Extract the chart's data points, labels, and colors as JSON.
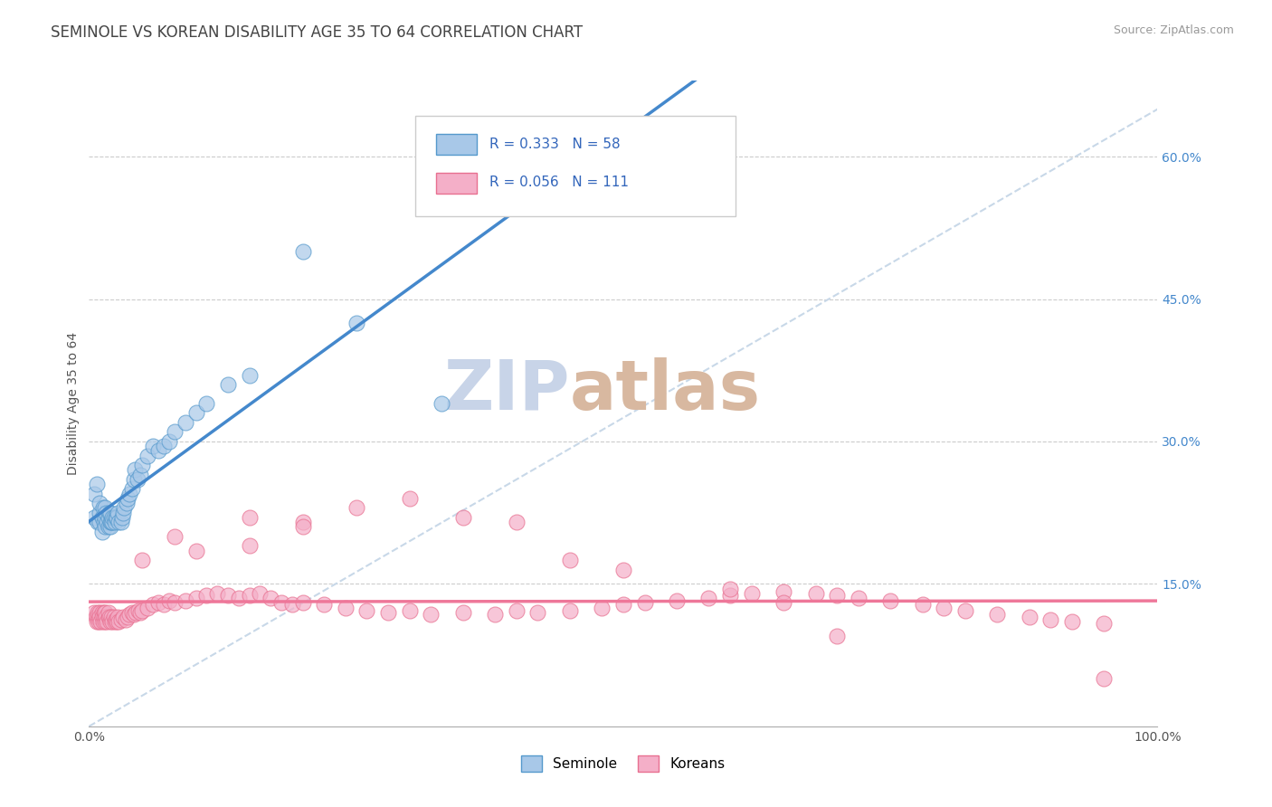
{
  "title": "SEMINOLE VS KOREAN DISABILITY AGE 35 TO 64 CORRELATION CHART",
  "source_text": "Source: ZipAtlas.com",
  "ylabel": "Disability Age 35 to 64",
  "xlim": [
    0.0,
    1.0
  ],
  "ylim": [
    0.0,
    0.68
  ],
  "xticks": [
    0.0,
    0.1,
    0.2,
    0.3,
    0.4,
    0.5,
    0.6,
    0.7,
    0.8,
    0.9,
    1.0
  ],
  "yticks": [
    0.15,
    0.3,
    0.45,
    0.6
  ],
  "yticklabels": [
    "15.0%",
    "30.0%",
    "45.0%",
    "60.0%"
  ],
  "seminole_color": "#a8c8e8",
  "korean_color": "#f4afc8",
  "seminole_edge": "#5599cc",
  "korean_edge": "#e87090",
  "seminole_line_color": "#4488cc",
  "korean_line_color": "#ee7799",
  "diag_line_color": "#c8d8e8",
  "r_seminole": 0.333,
  "n_seminole": 58,
  "r_korean": 0.056,
  "n_korean": 111,
  "legend_label_seminole": "Seminole",
  "legend_label_korean": "Koreans",
  "seminole_x": [
    0.005,
    0.005,
    0.007,
    0.008,
    0.01,
    0.01,
    0.01,
    0.012,
    0.012,
    0.013,
    0.014,
    0.015,
    0.015,
    0.015,
    0.016,
    0.017,
    0.018,
    0.018,
    0.019,
    0.02,
    0.02,
    0.02,
    0.021,
    0.022,
    0.022,
    0.023,
    0.024,
    0.025,
    0.026,
    0.027,
    0.028,
    0.03,
    0.031,
    0.032,
    0.033,
    0.035,
    0.036,
    0.038,
    0.04,
    0.042,
    0.043,
    0.045,
    0.048,
    0.05,
    0.055,
    0.06,
    0.065,
    0.07,
    0.075,
    0.08,
    0.09,
    0.1,
    0.11,
    0.13,
    0.15,
    0.2,
    0.25,
    0.33
  ],
  "seminole_y": [
    0.22,
    0.245,
    0.255,
    0.215,
    0.215,
    0.225,
    0.235,
    0.205,
    0.22,
    0.23,
    0.215,
    0.21,
    0.22,
    0.23,
    0.225,
    0.215,
    0.21,
    0.22,
    0.225,
    0.21,
    0.215,
    0.225,
    0.215,
    0.215,
    0.22,
    0.22,
    0.215,
    0.22,
    0.22,
    0.225,
    0.215,
    0.215,
    0.22,
    0.225,
    0.23,
    0.235,
    0.24,
    0.245,
    0.25,
    0.26,
    0.27,
    0.26,
    0.265,
    0.275,
    0.285,
    0.295,
    0.29,
    0.295,
    0.3,
    0.31,
    0.32,
    0.33,
    0.34,
    0.36,
    0.37,
    0.5,
    0.425,
    0.34
  ],
  "korean_x": [
    0.005,
    0.006,
    0.007,
    0.008,
    0.008,
    0.009,
    0.01,
    0.01,
    0.011,
    0.012,
    0.012,
    0.013,
    0.014,
    0.014,
    0.015,
    0.015,
    0.016,
    0.017,
    0.018,
    0.018,
    0.019,
    0.02,
    0.021,
    0.022,
    0.023,
    0.024,
    0.025,
    0.026,
    0.027,
    0.028,
    0.03,
    0.032,
    0.034,
    0.036,
    0.038,
    0.04,
    0.042,
    0.044,
    0.046,
    0.048,
    0.05,
    0.055,
    0.06,
    0.065,
    0.07,
    0.075,
    0.08,
    0.09,
    0.1,
    0.11,
    0.12,
    0.13,
    0.14,
    0.15,
    0.16,
    0.17,
    0.18,
    0.19,
    0.2,
    0.22,
    0.24,
    0.26,
    0.28,
    0.3,
    0.32,
    0.35,
    0.38,
    0.4,
    0.42,
    0.45,
    0.48,
    0.5,
    0.52,
    0.55,
    0.58,
    0.6,
    0.62,
    0.65,
    0.68,
    0.7,
    0.72,
    0.75,
    0.78,
    0.8,
    0.82,
    0.85,
    0.88,
    0.9,
    0.92,
    0.95,
    0.05,
    0.08,
    0.1,
    0.15,
    0.2,
    0.25,
    0.3,
    0.35,
    0.4,
    0.45,
    0.5,
    0.6,
    0.65,
    0.7,
    0.15,
    0.2,
    0.95
  ],
  "korean_y": [
    0.12,
    0.115,
    0.11,
    0.115,
    0.12,
    0.11,
    0.12,
    0.115,
    0.11,
    0.12,
    0.115,
    0.11,
    0.12,
    0.115,
    0.11,
    0.12,
    0.115,
    0.11,
    0.115,
    0.12,
    0.115,
    0.11,
    0.115,
    0.11,
    0.115,
    0.11,
    0.112,
    0.11,
    0.115,
    0.11,
    0.112,
    0.115,
    0.112,
    0.115,
    0.118,
    0.12,
    0.118,
    0.12,
    0.122,
    0.12,
    0.122,
    0.125,
    0.128,
    0.13,
    0.128,
    0.132,
    0.13,
    0.132,
    0.135,
    0.138,
    0.14,
    0.138,
    0.135,
    0.138,
    0.14,
    0.135,
    0.13,
    0.128,
    0.13,
    0.128,
    0.125,
    0.122,
    0.12,
    0.122,
    0.118,
    0.12,
    0.118,
    0.122,
    0.12,
    0.122,
    0.125,
    0.128,
    0.13,
    0.132,
    0.135,
    0.138,
    0.14,
    0.142,
    0.14,
    0.138,
    0.135,
    0.132,
    0.128,
    0.125,
    0.122,
    0.118,
    0.115,
    0.112,
    0.11,
    0.108,
    0.175,
    0.2,
    0.185,
    0.22,
    0.215,
    0.23,
    0.24,
    0.22,
    0.215,
    0.175,
    0.165,
    0.145,
    0.13,
    0.095,
    0.19,
    0.21,
    0.05
  ],
  "background_color": "#ffffff",
  "grid_color": "#cccccc",
  "title_fontsize": 12,
  "axis_fontsize": 10,
  "tick_fontsize": 10,
  "watermark_zip_color": "#c8d4e8",
  "watermark_atlas_color": "#d8b8a0",
  "watermark_fontsize": 55
}
